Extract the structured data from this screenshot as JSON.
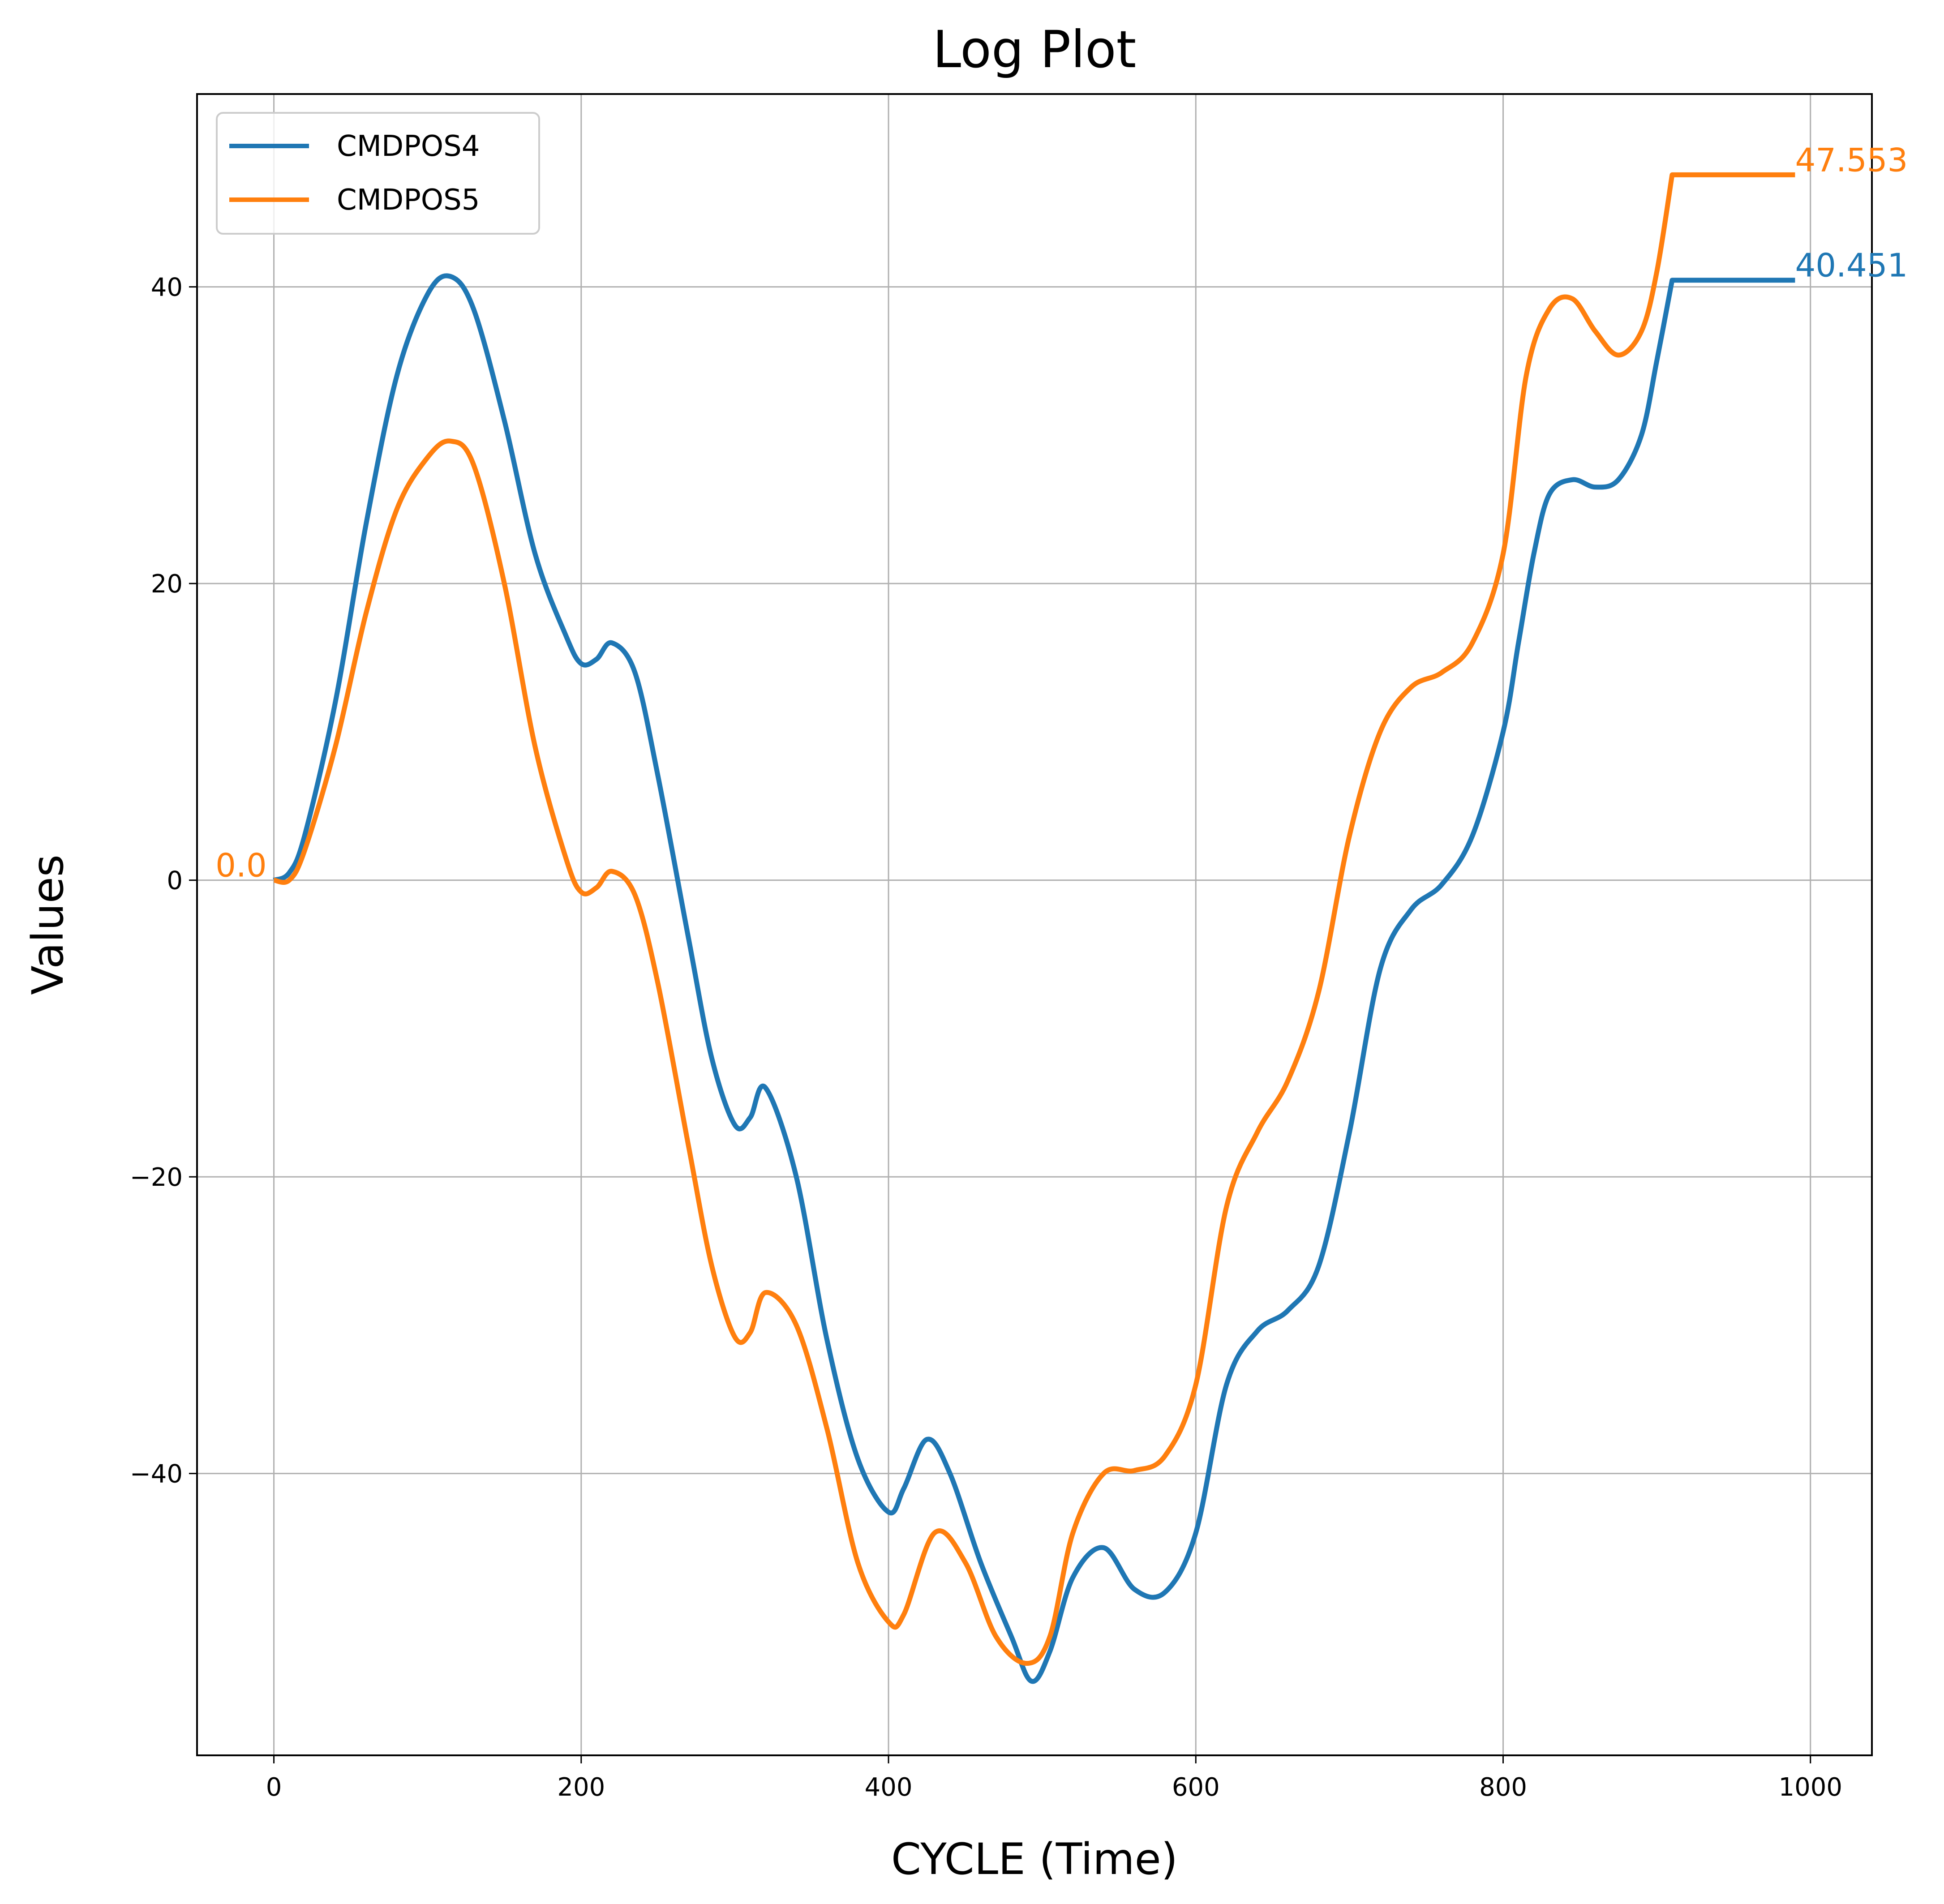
{
  "chart_data": {
    "type": "line",
    "title": "Log Plot",
    "xlabel": "CYCLE (Time)",
    "ylabel": "Values",
    "xlim": [
      -50,
      1040
    ],
    "ylim": [
      -59,
      53
    ],
    "xticks": [
      0,
      200,
      400,
      600,
      800,
      1000
    ],
    "yticks": [
      -40,
      -20,
      0,
      20,
      40
    ],
    "grid": true,
    "legend_position": "upper-left",
    "series": [
      {
        "name": "CMDPOS4",
        "color": "#1f77b4",
        "x": [
          0,
          10,
          20,
          40,
          60,
          80,
          100,
          115,
          130,
          150,
          170,
          190,
          200,
          210,
          220,
          235,
          250,
          270,
          285,
          300,
          310,
          320,
          340,
          360,
          380,
          400,
          410,
          425,
          440,
          460,
          480,
          493,
          505,
          520,
          540,
          560,
          580,
          600,
          620,
          640,
          660,
          680,
          700,
          720,
          740,
          760,
          780,
          800,
          810,
          820,
          830,
          845,
          860,
          875,
          890,
          900,
          910,
          990
        ],
        "y": [
          0,
          0.5,
          3,
          12,
          24,
          34,
          39.5,
          40.7,
          38.5,
          31,
          22,
          16.5,
          14.6,
          14.9,
          16,
          14,
          7,
          -4,
          -12,
          -16.5,
          -16,
          -14,
          -20,
          -31,
          -39,
          -42.6,
          -41,
          -37.7,
          -40,
          -46,
          -51,
          -54,
          -52,
          -47,
          -45,
          -47.8,
          -48,
          -44,
          -34,
          -30.4,
          -29,
          -26,
          -17,
          -6,
          -2,
          -0.3,
          3,
          10,
          16,
          22,
          26,
          27,
          26.5,
          27,
          30,
          35,
          40.451,
          40.451
        ]
      },
      {
        "name": "CMDPOS5",
        "color": "#ff7f0e",
        "x": [
          0,
          10,
          20,
          40,
          60,
          80,
          100,
          115,
          130,
          150,
          170,
          190,
          200,
          210,
          220,
          235,
          250,
          270,
          285,
          300,
          310,
          320,
          340,
          360,
          380,
          400,
          410,
          430,
          450,
          470,
          490,
          505,
          520,
          540,
          560,
          580,
          600,
          620,
          640,
          660,
          680,
          700,
          720,
          740,
          760,
          780,
          800,
          815,
          830,
          845,
          860,
          875,
          890,
          900,
          910,
          990
        ],
        "y": [
          0,
          0,
          2,
          9,
          18,
          25,
          28.5,
          29.6,
          28,
          20,
          9,
          1.5,
          -0.8,
          -0.5,
          0.6,
          -1,
          -7,
          -18,
          -26,
          -30.8,
          -30.5,
          -27.8,
          -30,
          -37,
          -46,
          -50,
          -49.5,
          -44,
          -46,
          -51,
          -52.8,
          -51,
          -44,
          -40,
          -39.8,
          -38.8,
          -34,
          -22,
          -17,
          -13.5,
          -7.5,
          3,
          10,
          13,
          14,
          16,
          22,
          34,
          38.5,
          39.2,
          37,
          35.4,
          37,
          41,
          47.553,
          47.553
        ]
      }
    ],
    "annotations": [
      {
        "text": "0.0",
        "x": -38,
        "y": 0,
        "color": "#ff7f0e"
      },
      {
        "text": "40.451",
        "x": 990,
        "y": 40.451,
        "color": "#1f77b4"
      },
      {
        "text": "47.553",
        "x": 990,
        "y": 47.553,
        "color": "#ff7f0e"
      }
    ]
  }
}
